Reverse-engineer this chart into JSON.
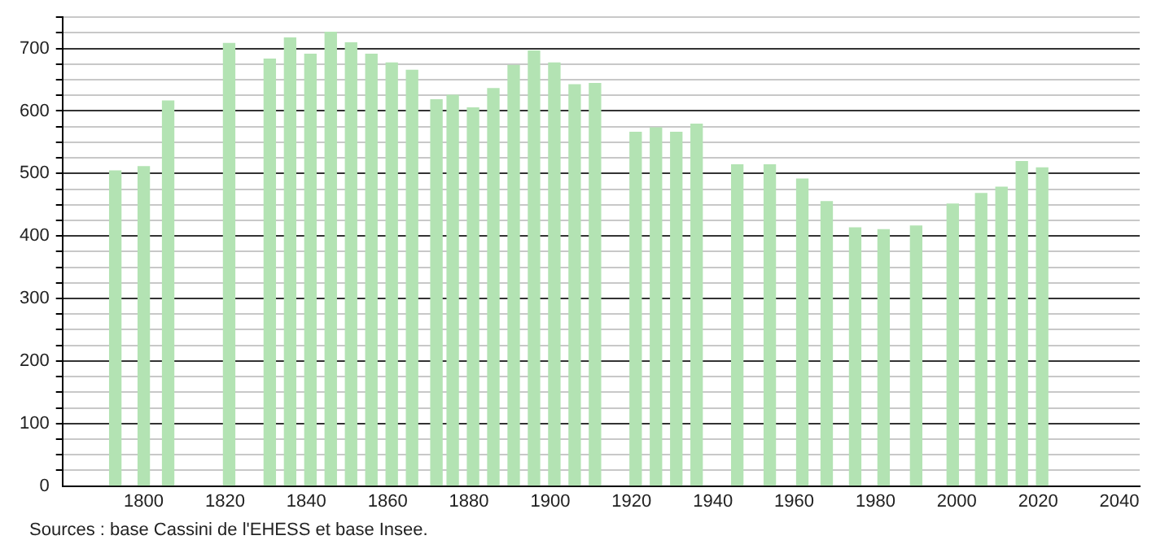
{
  "chart_data": {
    "type": "bar",
    "x": [
      1793,
      1800,
      1806,
      1821,
      1831,
      1836,
      1841,
      1846,
      1851,
      1856,
      1861,
      1866,
      1872,
      1876,
      1881,
      1886,
      1891,
      1896,
      1901,
      1906,
      1911,
      1921,
      1926,
      1931,
      1936,
      1946,
      1954,
      1962,
      1968,
      1975,
      1982,
      1990,
      1999,
      2006,
      2011,
      2016,
      2021
    ],
    "values": [
      504,
      511,
      616,
      708,
      683,
      717,
      691,
      726,
      709,
      691,
      677,
      665,
      618,
      625,
      605,
      636,
      673,
      696,
      677,
      642,
      644,
      566,
      573,
      566,
      579,
      514,
      514,
      491,
      455,
      413,
      410,
      416,
      451,
      468,
      478,
      519,
      509
    ],
    "color": "#b3e3b3",
    "xlim": [
      1780,
      2045
    ],
    "xticks": [
      1800,
      1820,
      1840,
      1860,
      1880,
      1900,
      1920,
      1940,
      1960,
      1980,
      2000,
      2020,
      2040
    ],
    "ylim": [
      0,
      750
    ],
    "yticks": [
      0,
      {
        "value": 25,
        "label": null
      },
      {
        "value": 50,
        "label": null
      },
      {
        "value": 75,
        "label": null
      },
      100,
      {
        "value": 125,
        "label": null
      },
      {
        "value": 150,
        "label": null
      },
      {
        "value": 175,
        "label": null
      },
      200,
      {
        "value": 225,
        "label": null
      },
      {
        "value": 250,
        "label": null
      },
      {
        "value": 275,
        "label": null
      },
      300,
      {
        "value": 325,
        "label": null
      },
      {
        "value": 350,
        "label": null
      },
      {
        "value": 375,
        "label": null
      },
      400,
      {
        "value": 425,
        "label": null
      },
      {
        "value": 450,
        "label": null
      },
      {
        "value": 475,
        "label": null
      },
      500,
      {
        "value": 525,
        "label": null
      },
      {
        "value": 550,
        "label": null
      },
      {
        "value": 575,
        "label": null
      },
      600,
      {
        "value": 625,
        "label": null
      },
      {
        "value": 650,
        "label": null
      },
      {
        "value": 675,
        "label": null
      },
      700,
      {
        "value": 725,
        "label": null
      },
      {
        "value": 750,
        "label": null
      }
    ],
    "grid": "y",
    "legend": false,
    "annotations": [
      "Sources : base Cassini de l'EHESS et base Insee."
    ]
  }
}
